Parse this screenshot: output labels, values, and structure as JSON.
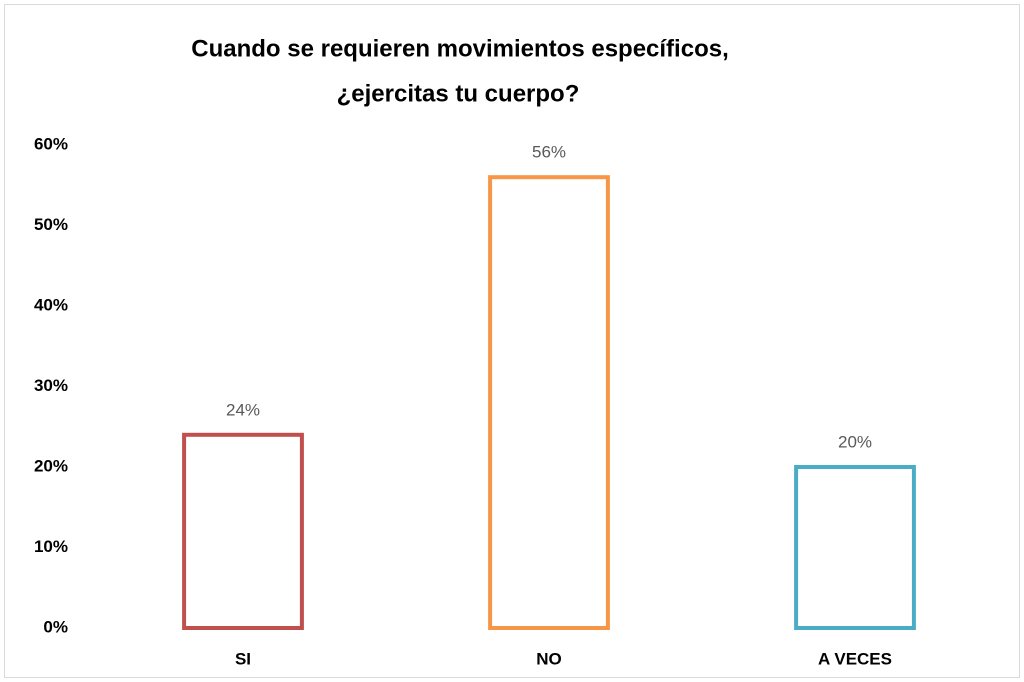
{
  "chart_data": {
    "type": "bar",
    "title": [
      "Cuando se requieren movimientos específicos,",
      "¿ejercitas tu cuerpo?"
    ],
    "categories": [
      "SI",
      "NO",
      "A VECES"
    ],
    "values": [
      24,
      56,
      20
    ],
    "value_labels": [
      "24%",
      "56%",
      "20%"
    ],
    "colors": [
      "#c0504d",
      "#f79646",
      "#4bacc6"
    ],
    "ylim": [
      0,
      60
    ],
    "yticks": [
      {
        "value": 0,
        "label": "0%"
      },
      {
        "value": 10,
        "label": "10%"
      },
      {
        "value": 20,
        "label": "20%"
      },
      {
        "value": 30,
        "label": "30%"
      },
      {
        "value": 40,
        "label": "40%"
      },
      {
        "value": 50,
        "label": "50%"
      },
      {
        "value": 60,
        "label": "60%"
      }
    ],
    "grid": false
  }
}
